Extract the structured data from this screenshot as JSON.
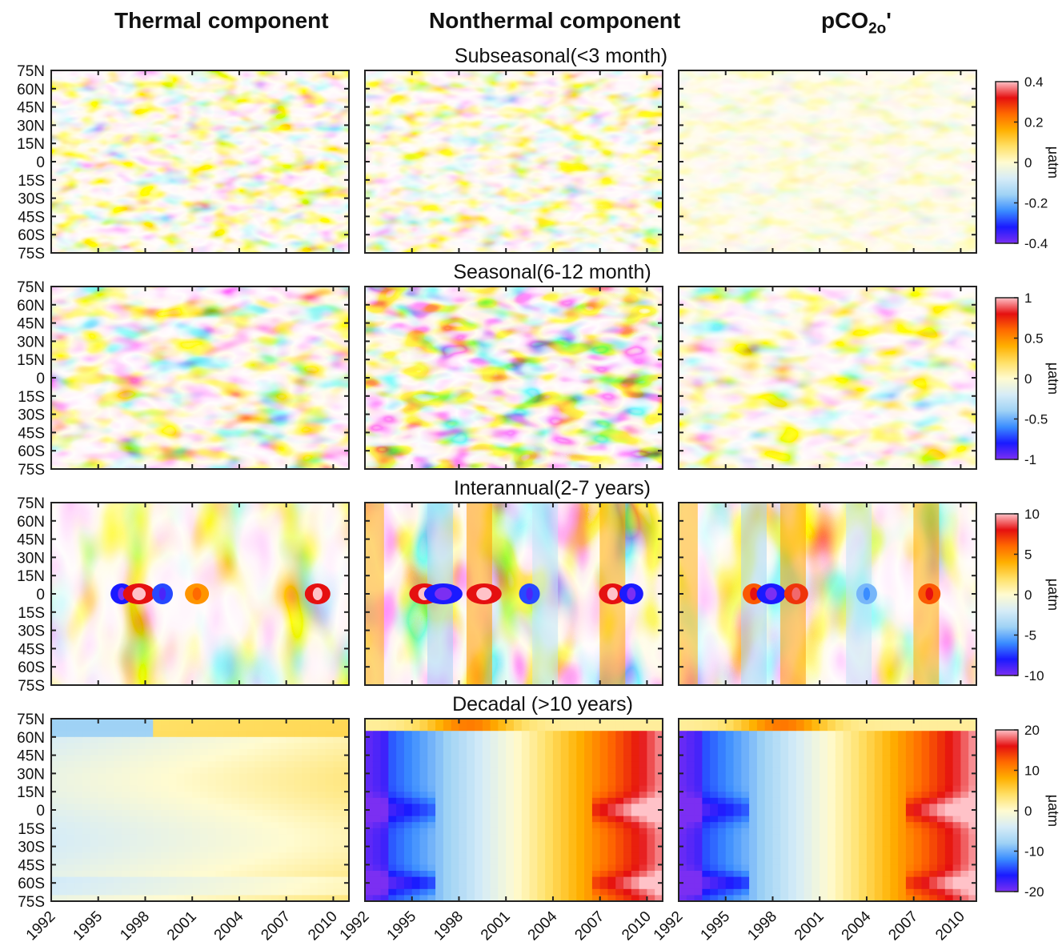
{
  "column_titles": {
    "thermal": "Thermal component",
    "nonthermal": "Nonthermal component",
    "total_main": "pCO",
    "total_sub": "2o",
    "total_prime": "'"
  },
  "colorscale": [
    "#7b2ff2",
    "#1a1aff",
    "#3a8cff",
    "#9fd2f5",
    "#d6ecf7",
    "#fffbd0",
    "#ffe066",
    "#ffb000",
    "#ff6a00",
    "#e51010",
    "#ffc2c8"
  ],
  "chart_data": [
    {
      "type": "heatmap",
      "title": "Subseasonal(<3 month)",
      "panels": [
        "Thermal component",
        "Nonthermal component",
        "pCO2o'"
      ],
      "x_ticks": [
        "1992",
        "1995",
        "1998",
        "2001",
        "2004",
        "2007",
        "2010"
      ],
      "xlim": [
        1992,
        2011
      ],
      "y_ticks": [
        "75N",
        "60N",
        "45N",
        "30N",
        "15N",
        "0",
        "15S",
        "30S",
        "45S",
        "60S",
        "75S"
      ],
      "ylim": [
        -75,
        75
      ],
      "colorbar": {
        "ticks": [
          "0.4",
          "0.2",
          "0",
          "-0.2",
          "-0.4"
        ],
        "range": [
          -0.4,
          0.4
        ],
        "unit": "μatm"
      },
      "amplitude": [
        0.38,
        0.35,
        0.15
      ]
    },
    {
      "type": "heatmap",
      "title": "Seasonal(6-12 month)",
      "panels": [
        "Thermal component",
        "Nonthermal component",
        "pCO2o'"
      ],
      "x_ticks": [
        "1992",
        "1995",
        "1998",
        "2001",
        "2004",
        "2007",
        "2010"
      ],
      "xlim": [
        1992,
        2011
      ],
      "y_ticks": [
        "75N",
        "60N",
        "45N",
        "30N",
        "15N",
        "0",
        "15S",
        "30S",
        "45S",
        "60S",
        "75S"
      ],
      "ylim": [
        -75,
        75
      ],
      "colorbar": {
        "ticks": [
          "1",
          "0.5",
          "0",
          "-0.5",
          "-1"
        ],
        "range": [
          -1,
          1
        ],
        "unit": "μatm"
      },
      "amplitude": [
        0.5,
        0.65,
        0.4
      ]
    },
    {
      "type": "heatmap",
      "title": "Interannual(2-7 years)",
      "panels": [
        "Thermal component",
        "Nonthermal component",
        "pCO2o'"
      ],
      "x_ticks": [
        "1992",
        "1995",
        "1998",
        "2001",
        "2004",
        "2007",
        "2010"
      ],
      "xlim": [
        1992,
        2011
      ],
      "y_ticks": [
        "75N",
        "60N",
        "45N",
        "30N",
        "15N",
        "0",
        "15S",
        "30S",
        "45S",
        "60S",
        "75S"
      ],
      "ylim": [
        -75,
        75
      ],
      "colorbar": {
        "ticks": [
          "10",
          "5",
          "0",
          "-5",
          "-10"
        ],
        "range": [
          -10,
          10
        ],
        "unit": "μatm"
      },
      "amplitude": [
        0.45,
        0.6,
        0.5
      ]
    },
    {
      "type": "heatmap",
      "title": "Decadal (>10 years)",
      "panels": [
        "Thermal component",
        "Nonthermal component",
        "pCO2o'"
      ],
      "x_ticks": [
        "1992",
        "1995",
        "1998",
        "2001",
        "2004",
        "2007",
        "2010"
      ],
      "xlim": [
        1992,
        2011
      ],
      "y_ticks": [
        "75N",
        "60N",
        "45N",
        "30N",
        "15N",
        "0",
        "15S",
        "30S",
        "45S",
        "60S",
        "75S"
      ],
      "ylim": [
        -75,
        75
      ],
      "colorbar": {
        "ticks": [
          "20",
          "10",
          "0",
          "-10",
          "-20"
        ],
        "range": [
          -20,
          20
        ],
        "unit": "μatm"
      },
      "amplitude": [
        0.2,
        0.95,
        0.95
      ]
    }
  ]
}
